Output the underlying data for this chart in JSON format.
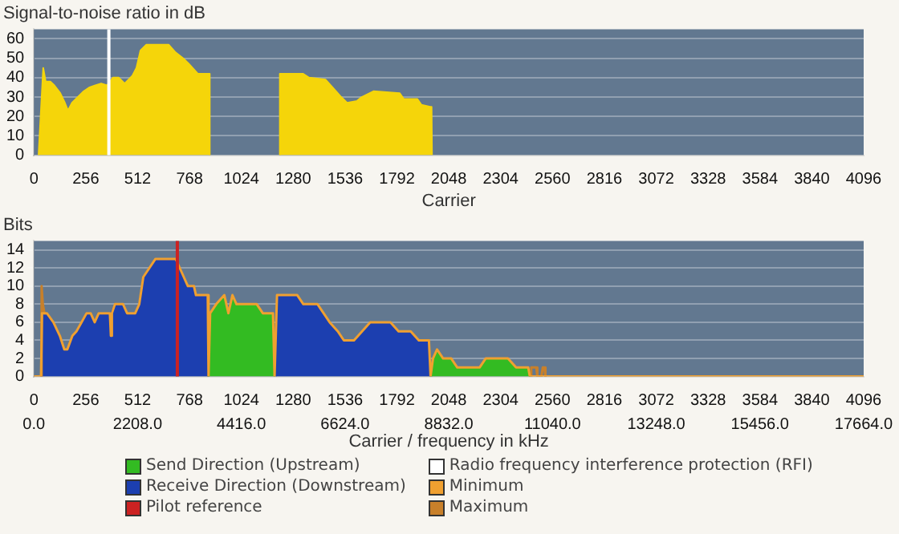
{
  "chart_data": [
    {
      "type": "area",
      "ylabel": "Signal-to-noise ratio in dB",
      "xlabel": "Carrier",
      "color": "#f5d50a",
      "grid": "y",
      "x": [
        23,
        46,
        58,
        81,
        101,
        130,
        153,
        168,
        188,
        217,
        246,
        275,
        303,
        332,
        361,
        390,
        419,
        448,
        486,
        506,
        526,
        555,
        665,
        699,
        737,
        766,
        809,
        853,
        865,
        868,
        1000,
        1212,
        1214,
        1329,
        1358,
        1439,
        1474,
        1517,
        1546,
        1595,
        1618,
        1676,
        1806,
        1826,
        1893,
        1913,
        1956,
        1963,
        1965
      ],
      "values": [
        0,
        45,
        38,
        38,
        36,
        32,
        27,
        23,
        27,
        30,
        33,
        35,
        36,
        37,
        36,
        40,
        40,
        37,
        41,
        45,
        54,
        57,
        57,
        53,
        50,
        47,
        42,
        42,
        42,
        0,
        null,
        0,
        42,
        42,
        40,
        39,
        35,
        30,
        27,
        28,
        30,
        33,
        32,
        29,
        29,
        26,
        25,
        25,
        0
      ],
      "xlim": [
        0,
        4096
      ],
      "xticks": [
        0,
        256,
        512,
        768,
        1024,
        1280,
        1536,
        1792,
        2048,
        2304,
        2560,
        2816,
        3072,
        3328,
        3584,
        3840,
        4096
      ],
      "ylim": [
        0,
        65
      ],
      "yticks": [
        0,
        10,
        20,
        30,
        40,
        50,
        60
      ],
      "ref_lines": [
        {
          "axis": "x",
          "value": 370,
          "label": "Radio frequency interference protection (RFI)",
          "color": "#ffffff"
        }
      ]
    },
    {
      "type": "area",
      "ylabel": "Bits",
      "xlabel": "Carrier / frequency in kHz",
      "grid": "y",
      "legend": "bottom",
      "series": [
        {
          "name": "Send Direction (Upstream)",
          "color": "#33bb22",
          "x": [
            862,
            870,
            900,
            940,
            960,
            980,
            1000,
            1100,
            1130,
            1180,
            1188,
            1500,
            1962,
            1970,
            1990,
            2020,
            2060,
            2090,
            2200,
            2230,
            2340,
            2380,
            2440,
            2448
          ],
          "values": [
            0,
            7,
            8,
            9,
            7,
            9,
            8,
            8,
            7,
            7,
            0,
            null,
            0,
            2,
            3,
            2,
            2,
            1,
            1,
            2,
            2,
            1,
            1,
            0
          ]
        },
        {
          "name": "Receive Direction (Downstream)",
          "color": "#1c3fb0",
          "x": [
            35,
            40,
            64,
            96,
            128,
            150,
            165,
            190,
            210,
            235,
            260,
            280,
            300,
            320,
            350,
            380,
            400,
            440,
            460,
            500,
            520,
            540,
            570,
            600,
            700,
            720,
            760,
            790,
            800,
            840,
            858,
            860,
            1000,
            1195,
            1200,
            1240,
            1260,
            1300,
            1330,
            1400,
            1430,
            1460,
            1500,
            1530,
            1580,
            1620,
            1660,
            1760,
            1800,
            1860,
            1900,
            1950,
            1958
          ],
          "values": [
            0,
            7,
            7,
            6,
            4.5,
            3,
            3,
            4.5,
            5,
            6,
            7,
            7,
            6,
            7,
            7,
            7,
            8,
            8,
            7,
            7,
            8,
            11,
            12,
            13,
            13,
            12,
            10,
            10,
            9,
            9,
            9,
            0,
            null,
            0,
            9,
            9,
            9,
            9,
            8,
            8,
            7,
            6,
            5,
            4,
            4,
            5,
            6,
            6,
            5,
            5,
            4,
            4,
            0
          ]
        },
        {
          "name": "Minimum",
          "type": "line",
          "color": "#f0a030",
          "x": [
            0,
            35,
            40,
            64,
            96,
            128,
            150,
            165,
            190,
            210,
            235,
            260,
            280,
            300,
            320,
            350,
            375,
            380,
            385,
            400,
            440,
            460,
            500,
            520,
            540,
            570,
            600,
            700,
            720,
            760,
            790,
            800,
            840,
            858,
            862,
            870,
            900,
            940,
            960,
            980,
            1000,
            1100,
            1130,
            1180,
            1188,
            1195,
            1200,
            1240,
            1260,
            1300,
            1330,
            1400,
            1430,
            1460,
            1500,
            1530,
            1580,
            1620,
            1660,
            1760,
            1800,
            1860,
            1900,
            1950,
            1958,
            1962,
            1970,
            1990,
            2020,
            2060,
            2090,
            2200,
            2230,
            2340,
            2380,
            2440,
            2448,
            4096
          ],
          "values": [
            0,
            0,
            7,
            7,
            6,
            4.5,
            3,
            3,
            4.5,
            5,
            6,
            7,
            7,
            6,
            7,
            7,
            7,
            4.5,
            7,
            8,
            8,
            7,
            7,
            8,
            11,
            12,
            13,
            13,
            12,
            10,
            10,
            9,
            9,
            9,
            0,
            7,
            8,
            9,
            7,
            9,
            8,
            8,
            7,
            7,
            0,
            0,
            9,
            9,
            9,
            9,
            8,
            8,
            7,
            6,
            5,
            4,
            4,
            5,
            6,
            6,
            5,
            5,
            4,
            4,
            0,
            0,
            2,
            3,
            2,
            2,
            1,
            1,
            2,
            2,
            1,
            1,
            0,
            0
          ]
        },
        {
          "name": "Maximum",
          "type": "line",
          "color": "#c8802a",
          "x": [
            30,
            35,
            38,
            44,
            52,
            60,
            1000,
            2448,
            2455,
            2480,
            2485,
            2505,
            2512,
            2520,
            2525
          ],
          "values": [
            0,
            0,
            10,
            8,
            7,
            7,
            null,
            0,
            1,
            1,
            0,
            0,
            1,
            1,
            0
          ]
        }
      ],
      "xlim": [
        0,
        4096
      ],
      "xticks": [
        0,
        256,
        512,
        768,
        1024,
        1280,
        1536,
        1792,
        2048,
        2304,
        2560,
        2816,
        3072,
        3328,
        3584,
        3840,
        4096
      ],
      "x2lim": [
        0,
        17664
      ],
      "x2ticks": [
        {
          "value": 0,
          "label": "0.0"
        },
        {
          "value": 2208,
          "label": "2208.0"
        },
        {
          "value": 4416,
          "label": "4416.0"
        },
        {
          "value": 6624,
          "label": "6624.0"
        },
        {
          "value": 8832,
          "label": "8832.0"
        },
        {
          "value": 11040,
          "label": "11040.0"
        },
        {
          "value": 13248,
          "label": "13248.0"
        },
        {
          "value": 15456,
          "label": "15456.0"
        },
        {
          "value": 17664,
          "label": "17664.0"
        }
      ],
      "ylim": [
        0,
        15
      ],
      "yticks": [
        0,
        2,
        4,
        6,
        8,
        10,
        12,
        14
      ],
      "ref_lines": [
        {
          "axis": "x",
          "value": 708,
          "label": "Pilot reference",
          "color": "#cc2222"
        }
      ]
    }
  ]
}
